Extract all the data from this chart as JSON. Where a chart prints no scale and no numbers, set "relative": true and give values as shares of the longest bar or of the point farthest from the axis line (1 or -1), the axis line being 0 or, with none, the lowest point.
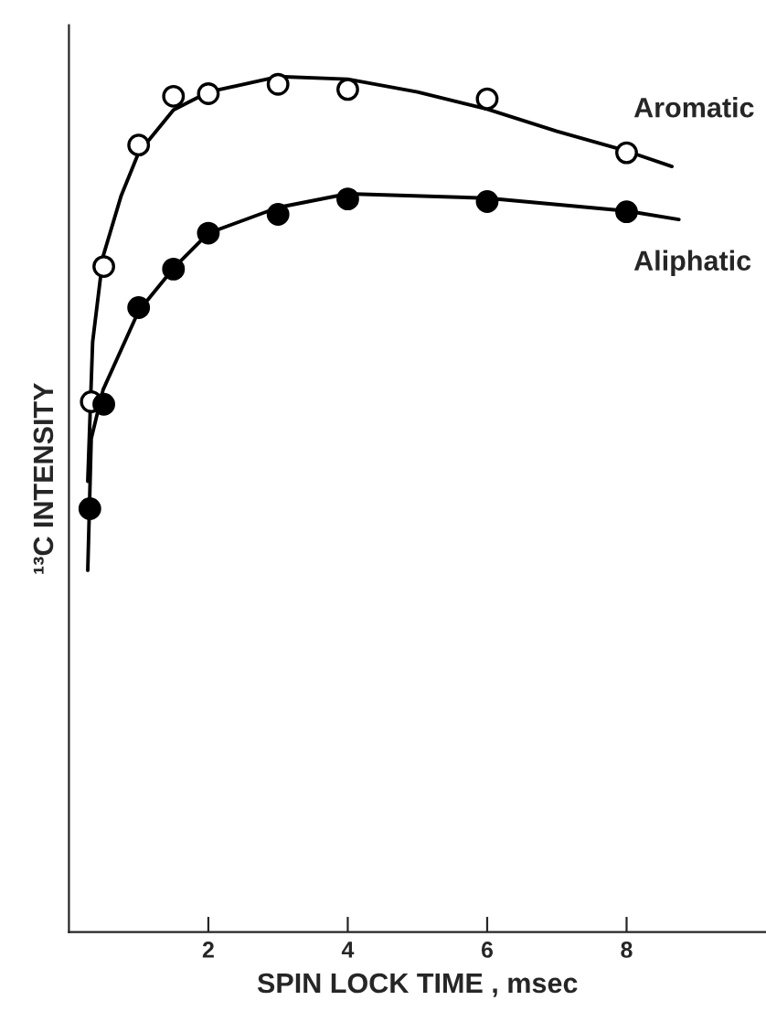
{
  "chart_data": {
    "type": "scatter",
    "relative": true,
    "xlabel": "SPIN LOCK TIME , msec",
    "ylabel": "¹³C INTENSITY",
    "xlim": [
      0,
      10
    ],
    "xticks": [
      2,
      4,
      6,
      8
    ],
    "grid": false,
    "legend": false,
    "series": [
      {
        "name": "Aromatic",
        "marker": "circle",
        "color": "#ffffff",
        "x": [
          0.32,
          0.5,
          1.0,
          1.5,
          2.0,
          3.0,
          4.0,
          6.0,
          8.0
        ],
        "values": [
          0.62,
          0.778,
          0.92,
          0.977,
          0.98,
          0.991,
          0.985,
          0.974,
          0.911
        ]
      },
      {
        "name": "Aliphatic",
        "marker": "circle",
        "color": "#000000",
        "x": [
          0.3,
          0.5,
          1.0,
          1.5,
          2.0,
          3.0,
          4.0,
          6.0,
          8.0
        ],
        "values": [
          0.495,
          0.617,
          0.73,
          0.775,
          0.817,
          0.839,
          0.857,
          0.854,
          0.842
        ]
      },
      {
        "type": "line",
        "marker": "none",
        "color": "#000000",
        "x": [
          0.27,
          0.34,
          0.49,
          0.75,
          1.0,
          1.5,
          2.0,
          3.0,
          4.0,
          5.0,
          6.0,
          7.0,
          8.0,
          8.65
        ],
        "values": [
          0.527,
          0.69,
          0.79,
          0.861,
          0.911,
          0.961,
          0.982,
          1.0,
          0.997,
          0.982,
          0.962,
          0.936,
          0.913,
          0.895
        ]
      },
      {
        "type": "line",
        "marker": "none",
        "color": "#000000",
        "x": [
          0.27,
          0.32,
          0.49,
          1.0,
          1.5,
          2.0,
          3.0,
          4.0,
          6.0,
          8.0,
          8.75
        ],
        "values": [
          0.423,
          0.577,
          0.634,
          0.726,
          0.776,
          0.817,
          0.847,
          0.863,
          0.858,
          0.843,
          0.833
        ]
      }
    ]
  }
}
